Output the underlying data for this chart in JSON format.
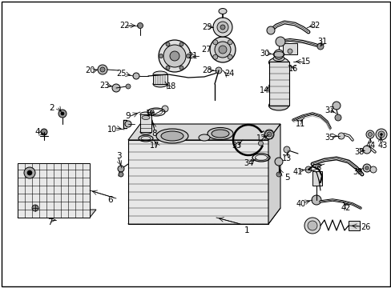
{
  "bg_color": "#ffffff",
  "fig_width": 4.89,
  "fig_height": 3.6,
  "dpi": 100,
  "image_data": ""
}
